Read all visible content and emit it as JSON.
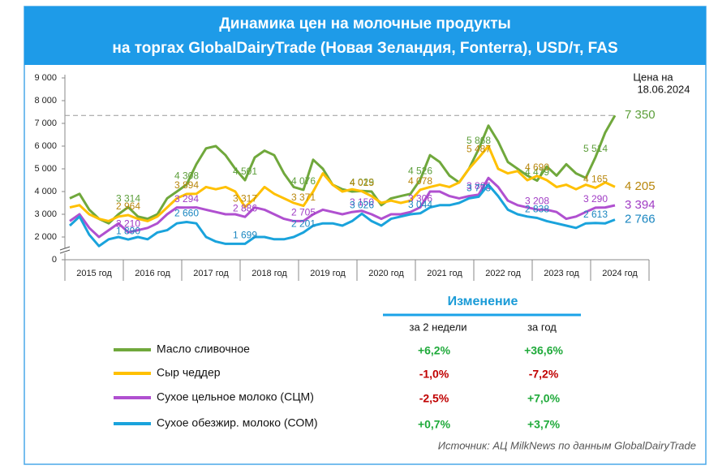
{
  "chart_data": {
    "type": "line",
    "title": "Динамика цен на молочные продукты",
    "subtitle": "на торгах GlobalDairyTrade (Новая Зеландия, Fonterra), USD/т, FAS",
    "annotation": [
      "Цена на",
      "18.06.2024"
    ],
    "source": "Источник: АЦ MilkNews по данным GlobalDairyTrade",
    "axis_break": true,
    "grid": false,
    "ylim": [
      1000,
      9000
    ],
    "yticks": [
      0,
      {
        "value": 2000,
        "label": "2 000"
      },
      {
        "value": 3000,
        "label": "3 000"
      },
      {
        "value": 4000,
        "label": "4 000"
      },
      {
        "value": 5000,
        "label": "5 000"
      },
      {
        "value": 6000,
        "label": "6 000"
      },
      {
        "value": 7000,
        "label": "7 000"
      },
      {
        "value": 8000,
        "label": "8 000"
      },
      {
        "value": 9000,
        "label": "9 000"
      }
    ],
    "categories": [
      "2015 год",
      null,
      null,
      null,
      null,
      null,
      "2016 год",
      null,
      null,
      null,
      null,
      null,
      "2017 год",
      null,
      null,
      null,
      null,
      null,
      "2018 год",
      null,
      null,
      null,
      null,
      null,
      "2019 год",
      null,
      null,
      null,
      null,
      null,
      "2020 год",
      null,
      null,
      null,
      null,
      null,
      "2021 год",
      null,
      null,
      null,
      null,
      null,
      "2022 год",
      null,
      null,
      null,
      null,
      null,
      "2023 год",
      null,
      null,
      null,
      null,
      null,
      "2024 год",
      null,
      null,
      null,
      null,
      null
    ],
    "series": [
      {
        "name": "Масло сливочное",
        "color": "#70a83c",
        "label_color": "#5c9e3a",
        "values": [
          3700,
          3900,
          3200,
          2800,
          2600,
          3000,
          3314,
          2900,
          2800,
          3000,
          3700,
          4000,
          4308,
          5200,
          5900,
          6000,
          5600,
          5000,
          4501,
          5500,
          5800,
          5600,
          4800,
          4200,
          4076,
          5400,
          5000,
          4300,
          4100,
          4000,
          4029,
          4000,
          3400,
          3700,
          3800,
          3900,
          4526,
          5600,
          5300,
          4700,
          4400,
          5000,
          5868,
          6900,
          6200,
          5300,
          5000,
          4700,
          4479,
          5100,
          4700,
          5200,
          4800,
          4600,
          5514,
          6600,
          7350,
          null,
          null,
          null
        ],
        "value_labels": [
          null,
          null,
          null,
          null,
          null,
          null,
          "3 314",
          null,
          null,
          null,
          null,
          null,
          "4 308",
          null,
          null,
          null,
          null,
          null,
          "4 501",
          null,
          null,
          null,
          null,
          null,
          "4 076",
          null,
          null,
          null,
          null,
          null,
          "4 029",
          null,
          null,
          null,
          null,
          null,
          "4 526",
          null,
          null,
          null,
          null,
          null,
          "5 868",
          null,
          null,
          null,
          null,
          null,
          "4 479",
          null,
          null,
          null,
          null,
          null,
          "5 514",
          null,
          "7 350",
          null,
          null,
          null
        ]
      },
      {
        "name": "Сыр чеддер",
        "color": "#ffc000",
        "label_color": "#b8860b",
        "values": [
          3300,
          3400,
          3000,
          2800,
          2700,
          2900,
          2964,
          2800,
          2700,
          2900,
          3300,
          3700,
          3894,
          3900,
          4200,
          4100,
          4200,
          4000,
          3317,
          3700,
          4200,
          3900,
          3700,
          3500,
          3371,
          4000,
          4800,
          4300,
          4000,
          4100,
          4015,
          3800,
          3500,
          3600,
          3500,
          3600,
          4078,
          4200,
          4300,
          4200,
          4400,
          5000,
          5487,
          6000,
          5000,
          4800,
          4900,
          4500,
          4690,
          4500,
          4200,
          4300,
          4100,
          4300,
          4165,
          4400,
          4205,
          null,
          null,
          null
        ],
        "value_labels": [
          null,
          null,
          null,
          null,
          null,
          null,
          "2 964",
          null,
          null,
          null,
          null,
          null,
          "3 894",
          null,
          null,
          null,
          null,
          null,
          "3 317",
          null,
          null,
          null,
          null,
          null,
          "3 371",
          null,
          null,
          null,
          null,
          null,
          "4 015",
          null,
          null,
          null,
          null,
          null,
          "4 078",
          null,
          null,
          null,
          null,
          null,
          "5 487",
          null,
          null,
          null,
          null,
          null,
          "4 690",
          null,
          null,
          null,
          null,
          null,
          "4 165",
          null,
          "4 205",
          null,
          null,
          null
        ]
      },
      {
        "name": "Сухое цельное молоко (СЦМ)",
        "color": "#b050d0",
        "label_color": "#a03cc4",
        "values": [
          2700,
          3000,
          2400,
          2000,
          2300,
          2600,
          2210,
          2300,
          2400,
          2600,
          3000,
          3300,
          3294,
          3300,
          3200,
          3100,
          3000,
          3000,
          2886,
          3300,
          3200,
          3000,
          2800,
          2700,
          2705,
          3000,
          3200,
          3100,
          3000,
          3100,
          3150,
          3000,
          2800,
          3000,
          3000,
          3100,
          3306,
          4000,
          4000,
          3800,
          3700,
          3800,
          3866,
          4600,
          4200,
          3600,
          3400,
          3300,
          3208,
          3200,
          3100,
          2800,
          2900,
          3100,
          3290,
          3300,
          3394,
          null,
          null,
          null
        ],
        "value_labels": [
          null,
          null,
          null,
          null,
          null,
          null,
          "2 210",
          null,
          null,
          null,
          null,
          null,
          "3 294",
          null,
          null,
          null,
          null,
          null,
          "2 886",
          null,
          null,
          null,
          null,
          null,
          "2 705",
          null,
          null,
          null,
          null,
          null,
          "3 150",
          null,
          null,
          null,
          null,
          null,
          "3 306",
          null,
          null,
          null,
          null,
          null,
          "3 866",
          null,
          null,
          null,
          null,
          null,
          "3 208",
          null,
          null,
          null,
          null,
          null,
          "3 290",
          null,
          "3 394",
          null,
          null,
          null
        ]
      },
      {
        "name": "Сухое обезжир. молоко (СОМ)",
        "color": "#1aa3dc",
        "label_color": "#1a86c0",
        "values": [
          2500,
          2900,
          2100,
          1600,
          1900,
          2000,
          1890,
          2000,
          1900,
          2200,
          2300,
          2600,
          2660,
          2600,
          2000,
          1800,
          1700,
          1700,
          1699,
          2000,
          2000,
          1900,
          1900,
          2000,
          2201,
          2500,
          2600,
          2600,
          2500,
          2700,
          3026,
          2700,
          2500,
          2800,
          2900,
          3000,
          3044,
          3300,
          3400,
          3400,
          3500,
          3700,
          3773,
          4300,
          3800,
          3200,
          3000,
          2900,
          2838,
          2700,
          2600,
          2500,
          2400,
          2600,
          2613,
          2600,
          2766,
          null,
          null,
          null
        ],
        "value_labels": [
          null,
          null,
          null,
          null,
          null,
          null,
          "1 890",
          null,
          null,
          null,
          null,
          null,
          "2 660",
          null,
          null,
          null,
          null,
          null,
          "1 699",
          null,
          null,
          null,
          null,
          null,
          "2 201",
          null,
          null,
          null,
          null,
          null,
          "3 026",
          null,
          null,
          null,
          null,
          null,
          "3 044",
          null,
          null,
          null,
          null,
          null,
          "3 773",
          null,
          null,
          null,
          null,
          null,
          "2 838",
          null,
          null,
          null,
          null,
          null,
          "2 613",
          null,
          "2 766",
          null,
          null,
          null
        ]
      }
    ],
    "changes": {
      "title": "Изменение",
      "columns": [
        "за 2 недели",
        "за год"
      ],
      "rows": [
        [
          "+6,2%",
          "+36,6%"
        ],
        [
          "-1,0%",
          "-7,2%"
        ],
        [
          "-2,5%",
          "+7,0%"
        ],
        [
          "+0,7%",
          "+3,7%"
        ]
      ]
    }
  }
}
